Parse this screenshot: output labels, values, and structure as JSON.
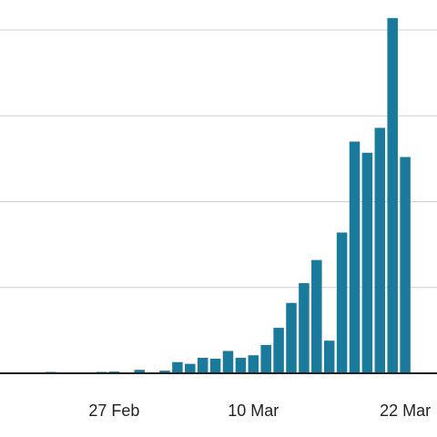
{
  "chart_data": {
    "type": "bar",
    "title": "",
    "xlabel": "",
    "ylabel": "",
    "x_tick_labels": [
      "27 Feb",
      "10 Mar",
      "22 Mar"
    ],
    "x_tick_index": [
      6,
      17,
      29
    ],
    "ylim": [
      0,
      410
    ],
    "y_gridlines": [
      100,
      200,
      300,
      400
    ],
    "grid": "horizontal",
    "bar_color": "#1a7a9c",
    "values": [
      0,
      1,
      0,
      0,
      0,
      1,
      2,
      0,
      4,
      0,
      3,
      13,
      11,
      18,
      17,
      26,
      18,
      21,
      33,
      53,
      82,
      105,
      132,
      38,
      164,
      270,
      257,
      286,
      414,
      252
    ]
  }
}
